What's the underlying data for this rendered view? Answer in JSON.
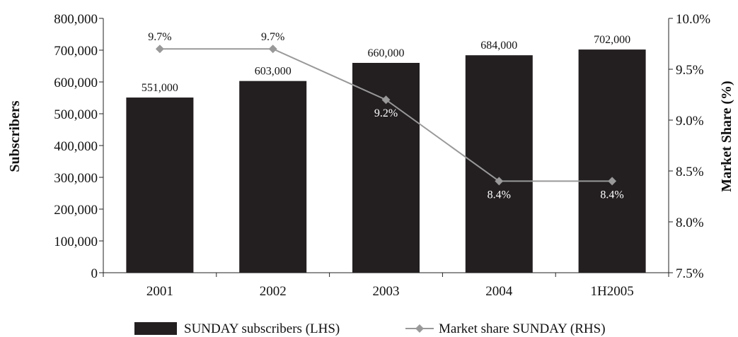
{
  "chart_data": {
    "type": "bar",
    "categories": [
      "2001",
      "2002",
      "2003",
      "2004",
      "1H2005"
    ],
    "series": [
      {
        "name": "SUNDAY subscribers",
        "legend_label": "SUNDAY subscribers  (LHS)",
        "type": "bar",
        "axis": "left",
        "values": [
          551000,
          603000,
          660000,
          684000,
          702000
        ],
        "labels": [
          "551,000",
          "603,000",
          "660,000",
          "684,000",
          "702,000"
        ],
        "color": "#231f20"
      },
      {
        "name": "Market share SUNDAY",
        "legend_label": "Market share SUNDAY (RHS)",
        "type": "line",
        "axis": "right",
        "values": [
          9.7,
          9.7,
          9.2,
          8.4,
          8.4
        ],
        "labels": [
          "9.7%",
          "9.7%",
          "9.2%",
          "8.4%",
          "8.4%"
        ],
        "color": "#999999",
        "marker": "diamond"
      }
    ],
    "ylabel": "Subscribers",
    "ylabel_right": "Market Share (%)",
    "ylim": [
      0,
      800000
    ],
    "ylim_right": [
      7.5,
      10.0
    ],
    "yticks": [
      "0",
      "100,000",
      "200,000",
      "300,000",
      "400,000",
      "500,000",
      "600,000",
      "700,000",
      "800,000"
    ],
    "yticks_right": [
      "7.5%",
      "8.0%",
      "8.5%",
      "9.0%",
      "9.5%",
      "10.0%"
    ],
    "grid": false,
    "legend_position": "bottom"
  }
}
